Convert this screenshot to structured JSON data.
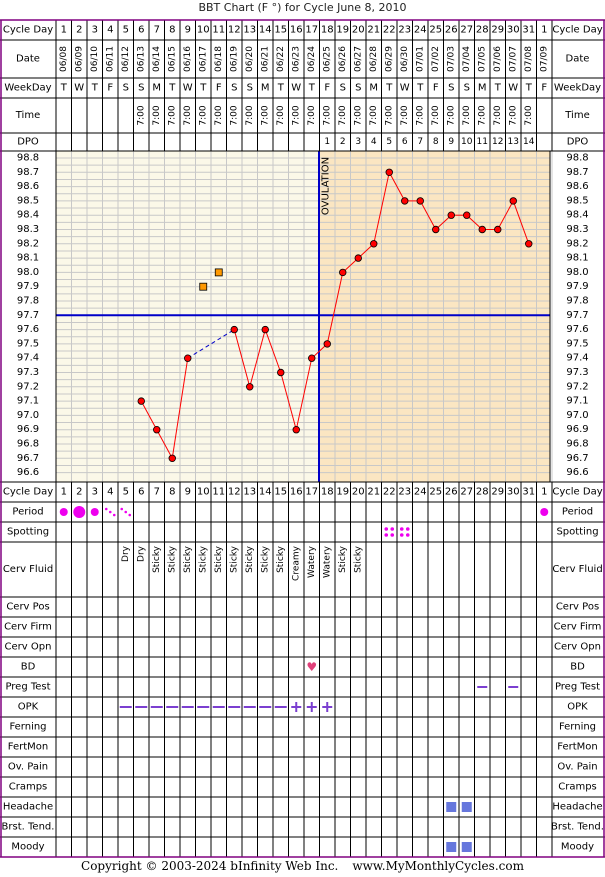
{
  "title": "BBT Chart (F °) for Cycle June 8, 2010",
  "footer": {
    "copyright": "Copyright © 2003-2024 bInfinity Web Inc.",
    "site": "www.MyMonthlyCycles.com"
  },
  "row_labels": {
    "cycle_day": "Cycle Day",
    "date": "Date",
    "weekday": "WeekDay",
    "time": "Time",
    "dpo": "DPO",
    "period": "Period",
    "spotting": "Spotting",
    "cerv_fluid": "Cerv Fluid",
    "cerv_pos": "Cerv Pos",
    "cerv_firm": "Cerv Firm",
    "cerv_opn": "Cerv Opn",
    "bd": "BD",
    "preg_test": "Preg Test",
    "opk": "OPK",
    "ferning": "Ferning",
    "fertmon": "FertMon",
    "ov_pain": "Ov. Pain",
    "cramps": "Cramps",
    "headache": "Headache",
    "brst_tend": "Brst. Tend.",
    "moody": "Moody"
  },
  "cycle_days": [
    "1",
    "2",
    "3",
    "4",
    "5",
    "6",
    "7",
    "8",
    "9",
    "10",
    "11",
    "12",
    "13",
    "14",
    "15",
    "16",
    "17",
    "18",
    "19",
    "20",
    "21",
    "22",
    "23",
    "24",
    "25",
    "26",
    "27",
    "28",
    "29",
    "30",
    "31",
    "1"
  ],
  "dates": [
    "06/08",
    "06/09",
    "06/10",
    "06/11",
    "06/12",
    "06/13",
    "06/14",
    "06/15",
    "06/16",
    "06/17",
    "06/18",
    "06/19",
    "06/20",
    "06/21",
    "06/22",
    "06/23",
    "06/24",
    "06/25",
    "06/26",
    "06/27",
    "06/28",
    "06/29",
    "06/30",
    "07/01",
    "07/02",
    "07/03",
    "07/04",
    "07/05",
    "07/06",
    "07/07",
    "07/08",
    "07/09"
  ],
  "weekdays": [
    "T",
    "W",
    "T",
    "F",
    "S",
    "S",
    "M",
    "T",
    "W",
    "T",
    "F",
    "S",
    "S",
    "M",
    "T",
    "W",
    "T",
    "F",
    "S",
    "S",
    "M",
    "T",
    "W",
    "T",
    "F",
    "S",
    "S",
    "M",
    "T",
    "W",
    "T",
    "F"
  ],
  "times": [
    "",
    "",
    "",
    "",
    "",
    "7:00",
    "7:00",
    "7:00",
    "7:00",
    "7:00",
    "7:00",
    "7:00",
    "7:00",
    "7:00",
    "7:00",
    "7:00",
    "7:00",
    "7:00",
    "7:00",
    "7:00",
    "7:00",
    "7:00",
    "7:00",
    "7:00",
    "7:00",
    "7:00",
    "7:00",
    "7:00",
    "7:00",
    "7:00",
    "7:00",
    ""
  ],
  "dpo": [
    "",
    "",
    "",
    "",
    "",
    "",
    "",
    "",
    "",
    "",
    "",
    "",
    "",
    "",
    "",
    "",
    "",
    "1",
    "2",
    "3",
    "4",
    "5",
    "6",
    "7",
    "8",
    "9",
    "10",
    "11",
    "12",
    "13",
    "14",
    ""
  ],
  "ovulation_label": "OVULATION",
  "temp_axis_labels": [
    "98.8",
    "98.7",
    "98.6",
    "98.5",
    "98.4",
    "98.3",
    "98.2",
    "98.1",
    "98.0",
    "97.9",
    "97.8",
    "97.7",
    "97.6",
    "97.5",
    "97.4",
    "97.3",
    "97.2",
    "97.1",
    "97.0",
    "96.9",
    "96.8",
    "96.7",
    "96.6"
  ],
  "chart_data": {
    "type": "line",
    "x_label": "Cycle Day",
    "y_label": "",
    "ylim": [
      96.6,
      98.8
    ],
    "grid": true,
    "coverline": 97.7,
    "ovulation_day": 17,
    "series": [
      {
        "values": [
          null,
          null,
          null,
          null,
          null,
          97.1,
          96.9,
          96.7,
          97.4,
          null,
          null,
          97.6,
          97.2,
          97.6,
          97.3,
          96.9,
          97.4,
          97.5,
          98.0,
          98.1,
          98.2,
          98.7,
          98.5,
          98.5,
          98.3,
          98.4,
          98.4,
          98.3,
          98.3,
          98.5,
          98.2,
          null
        ]
      }
    ],
    "discarded": [
      {
        "day": 10,
        "value": 97.9
      },
      {
        "day": 11,
        "value": 98.0
      }
    ]
  },
  "period": [
    "dot-small",
    "dot-large",
    "dot-small",
    "spot-dots",
    "spot-dots",
    "",
    "",
    "",
    "",
    "",
    "",
    "",
    "",
    "",
    "",
    "",
    "",
    "",
    "",
    "",
    "",
    "",
    "",
    "",
    "",
    "",
    "",
    "",
    "",
    "",
    "",
    "dot-small"
  ],
  "spotting": [
    "",
    "",
    "",
    "",
    "",
    "",
    "",
    "",
    "",
    "",
    "",
    "",
    "",
    "",
    "",
    "",
    "",
    "",
    "",
    "",
    "",
    "spot",
    "spot",
    "",
    "",
    "",
    "",
    "",
    "",
    "",
    "",
    ""
  ],
  "cerv_fluid": [
    "",
    "",
    "",
    "",
    "Dry",
    "Dry",
    "Sticky",
    "Sticky",
    "Sticky",
    "Sticky",
    "Sticky",
    "Sticky",
    "Sticky",
    "Sticky",
    "Sticky",
    "Creamy",
    "Watery",
    "Watery",
    "Sticky",
    "Sticky",
    "",
    "",
    "",
    "",
    "",
    "",
    "",
    "",
    "",
    "",
    "",
    ""
  ],
  "bd": [
    "",
    "",
    "",
    "",
    "",
    "",
    "",
    "",
    "",
    "",
    "",
    "",
    "",
    "",
    "",
    "",
    "heart",
    "",
    "",
    "",
    "",
    "",
    "",
    "",
    "",
    "",
    "",
    "",
    "",
    "",
    "",
    ""
  ],
  "preg_test": [
    "",
    "",
    "",
    "",
    "",
    "",
    "",
    "",
    "",
    "",
    "",
    "",
    "",
    "",
    "",
    "",
    "",
    "",
    "",
    "",
    "",
    "",
    "",
    "",
    "",
    "",
    "",
    "neg",
    "",
    "neg",
    "",
    ""
  ],
  "opk": [
    "",
    "",
    "",
    "",
    "neg",
    "neg",
    "neg",
    "neg",
    "neg",
    "neg",
    "neg",
    "neg",
    "neg",
    "neg",
    "neg",
    "pos",
    "pos",
    "pos",
    "",
    "",
    "",
    "",
    "",
    "",
    "",
    "",
    "",
    "",
    "",
    "",
    "",
    ""
  ],
  "headache": [
    "",
    "",
    "",
    "",
    "",
    "",
    "",
    "",
    "",
    "",
    "",
    "",
    "",
    "",
    "",
    "",
    "",
    "",
    "",
    "",
    "",
    "",
    "",
    "",
    "",
    "box",
    "box",
    "",
    "",
    "",
    "",
    ""
  ],
  "moody": [
    "",
    "",
    "",
    "",
    "",
    "",
    "",
    "",
    "",
    "",
    "",
    "",
    "",
    "",
    "",
    "",
    "",
    "",
    "",
    "",
    "",
    "",
    "",
    "",
    "",
    "box",
    "box",
    "",
    "",
    "",
    "",
    ""
  ],
  "colors": {
    "border": "#800080",
    "grid": "#c8c8c8",
    "pre_bg": "#fbf8e8",
    "post_bg": "#fbe6c2",
    "line": "#ff0000",
    "coverline": "#0000c8",
    "period": "#ee00ee",
    "opk": "#7b3fd0",
    "symptom": "#6677dd"
  }
}
